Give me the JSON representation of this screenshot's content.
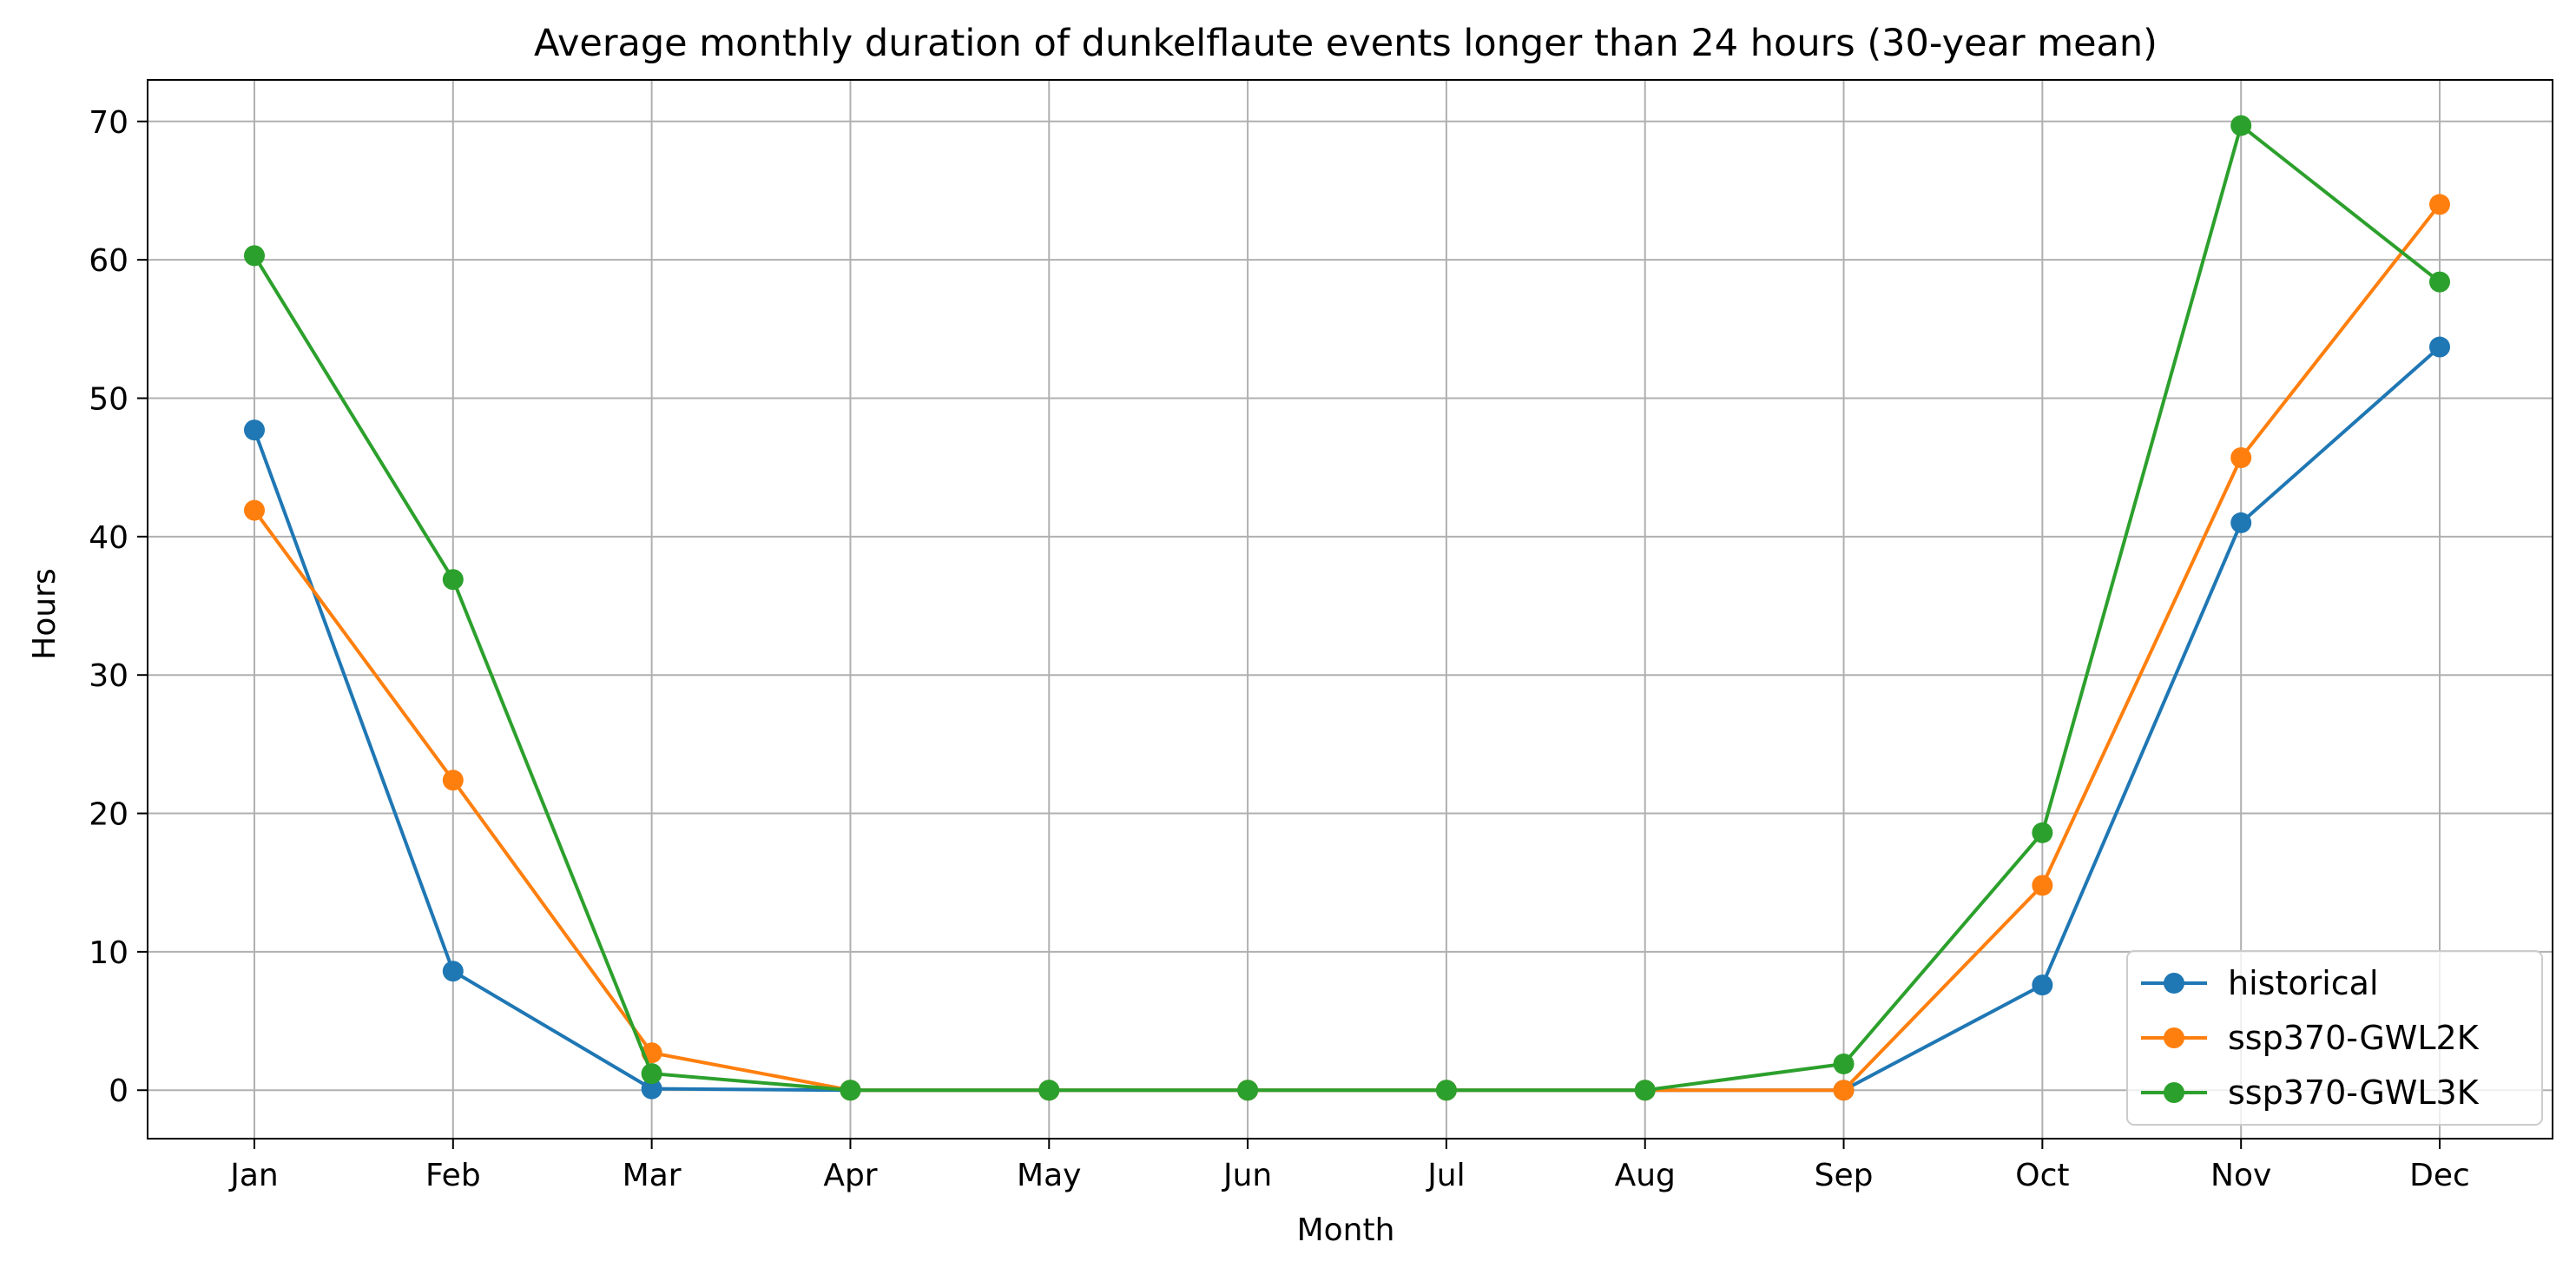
{
  "chart_data": {
    "type": "line",
    "title": "Average monthly duration of dunkelflaute events longer than 24 hours (30-year mean)",
    "xlabel": "Month",
    "ylabel": "Hours",
    "categories": [
      "Jan",
      "Feb",
      "Mar",
      "Apr",
      "May",
      "Jun",
      "Jul",
      "Aug",
      "Sep",
      "Oct",
      "Nov",
      "Dec"
    ],
    "ylim": [
      -3.5,
      73
    ],
    "yticks": [
      0,
      10,
      20,
      30,
      40,
      50,
      60,
      70
    ],
    "grid": true,
    "legend_position": "bottom-right",
    "series": [
      {
        "name": "historical",
        "color": "#1f77b4",
        "values": [
          47.7,
          8.6,
          0.1,
          0,
          0,
          0,
          0,
          0,
          0,
          7.6,
          41.0,
          53.7
        ]
      },
      {
        "name": "ssp370-GWL2K",
        "color": "#ff7f0e",
        "values": [
          41.9,
          22.4,
          2.7,
          0,
          0,
          0,
          0,
          0,
          0,
          14.8,
          45.7,
          64.0
        ]
      },
      {
        "name": "ssp370-GWL3K",
        "color": "#2ca02c",
        "values": [
          60.3,
          36.9,
          1.2,
          0,
          0,
          0,
          0,
          0,
          1.9,
          18.6,
          69.7,
          58.4
        ]
      }
    ]
  }
}
